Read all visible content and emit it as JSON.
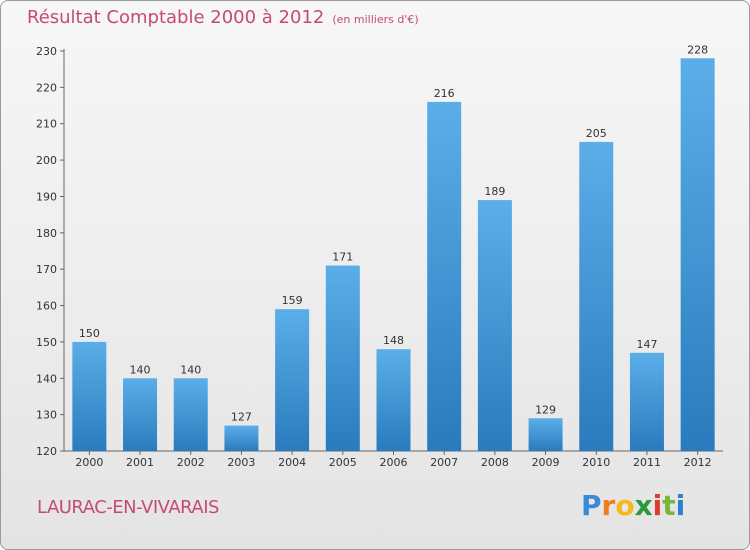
{
  "header": {
    "title": "Résultat Comptable 2000 à 2012",
    "subtitle": "(en milliers d'€)"
  },
  "footer": {
    "commune": "LAURAC-EN-VIVARAIS",
    "logo": "Proxiti"
  },
  "colors": {
    "bar_light": "#5baee8",
    "bar_dark": "#2a7bbd",
    "title": "#c44a78"
  },
  "chart_data": {
    "type": "bar",
    "title": "Résultat Comptable 2000 à 2012",
    "xlabel": "",
    "ylabel": "",
    "categories": [
      "2000",
      "2001",
      "2002",
      "2003",
      "2004",
      "2005",
      "2006",
      "2007",
      "2008",
      "2009",
      "2010",
      "2011",
      "2012"
    ],
    "values": [
      150,
      140,
      140,
      127,
      159,
      171,
      148,
      216,
      189,
      129,
      205,
      147,
      228
    ],
    "ylim": [
      120,
      230
    ],
    "yticks": [
      120,
      130,
      140,
      150,
      160,
      170,
      180,
      190,
      200,
      210,
      220,
      230
    ],
    "grid": false,
    "data_labels": true
  }
}
